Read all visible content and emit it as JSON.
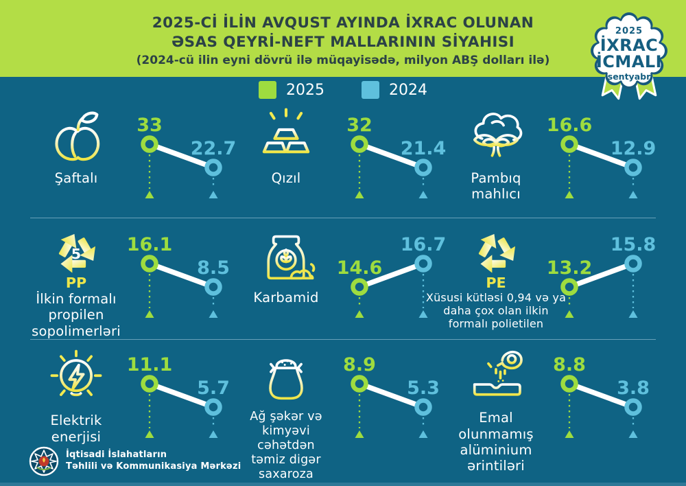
{
  "header": {
    "title_line1": "2025-Cİ İLİN AVQUST AYINDA İXRAC OLUNAN",
    "title_line2": "ƏSAS QEYRİ-NEFT MALLARININ SİYAHISI",
    "subtitle": "(2024-cü ilin eyni dövrü ilə müqayisədə, milyon ABŞ dolları ilə)"
  },
  "badge": {
    "year": "2025",
    "title1": "İXRAC",
    "title2": "İCMALI",
    "month": "sentyabr"
  },
  "legend": {
    "items": [
      {
        "label": "2025",
        "color": "#9edc3f"
      },
      {
        "label": "2024",
        "color": "#5fc0dd"
      }
    ]
  },
  "icons": {
    "pp_digit": "5",
    "pp_label": "PP",
    "pe_label": "PE"
  },
  "footer": {
    "org_line1": "İqtisadi İslahatların",
    "org_line2": "Təhlili və Kommunikasiya Mərkəzi"
  },
  "colors": {
    "header_bg": "#b3dd46",
    "main_bg": "#0f6384",
    "accent_2025": "#9edc3f",
    "accent_2024": "#5fc0dd",
    "icon_yellow": "#f0e84e",
    "title_text": "#2c4246",
    "badge_text": "#155e80",
    "footer_strip": "#2e7897",
    "white": "#ffffff"
  },
  "chart_data": {
    "type": "slope-comparison",
    "title": "2025-ci ilin avqust ayında ixrac olunan əsas qeyri-neft mallarının siyahısı",
    "unit": "milyon ABŞ dolları",
    "series_years": [
      "2025",
      "2024"
    ],
    "legend_position": "top-center",
    "items": [
      {
        "label": "Şaftalı",
        "icon": "peach-icon",
        "v2025": 33,
        "v2024": 22.7
      },
      {
        "label": "Qızıl",
        "icon": "gold-bars-icon",
        "v2025": 32,
        "v2024": 21.4
      },
      {
        "label": "Pambıq mahlıcı",
        "icon": "cotton-icon",
        "v2025": 16.6,
        "v2024": 12.9
      },
      {
        "label": "İlkin formalı propilen sopolimerləri",
        "icon": "recycle-pp-icon",
        "v2025": 16.1,
        "v2024": 8.5
      },
      {
        "label": "Karbamid",
        "icon": "urea-bag-icon",
        "v2025": 14.6,
        "v2024": 16.7
      },
      {
        "label": "Xüsusi kütləsi 0,94 və ya daha çox olan ilkin formalı polietilen",
        "icon": "recycle-pe-icon",
        "v2025": 13.2,
        "v2024": 15.8
      },
      {
        "label": "Elektrik enerjisi",
        "icon": "bulb-icon",
        "v2025": 11.1,
        "v2024": 5.7
      },
      {
        "label": "Ağ şəkər və kimyəvi cəhətdən təmiz digər saxaroza",
        "icon": "sugar-sack-icon",
        "v2025": 8.9,
        "v2024": 5.3
      },
      {
        "label": "Emal olunmamış alüminium ərintiləri",
        "icon": "aluminium-icon",
        "v2025": 8.8,
        "v2024": 3.8
      }
    ]
  }
}
